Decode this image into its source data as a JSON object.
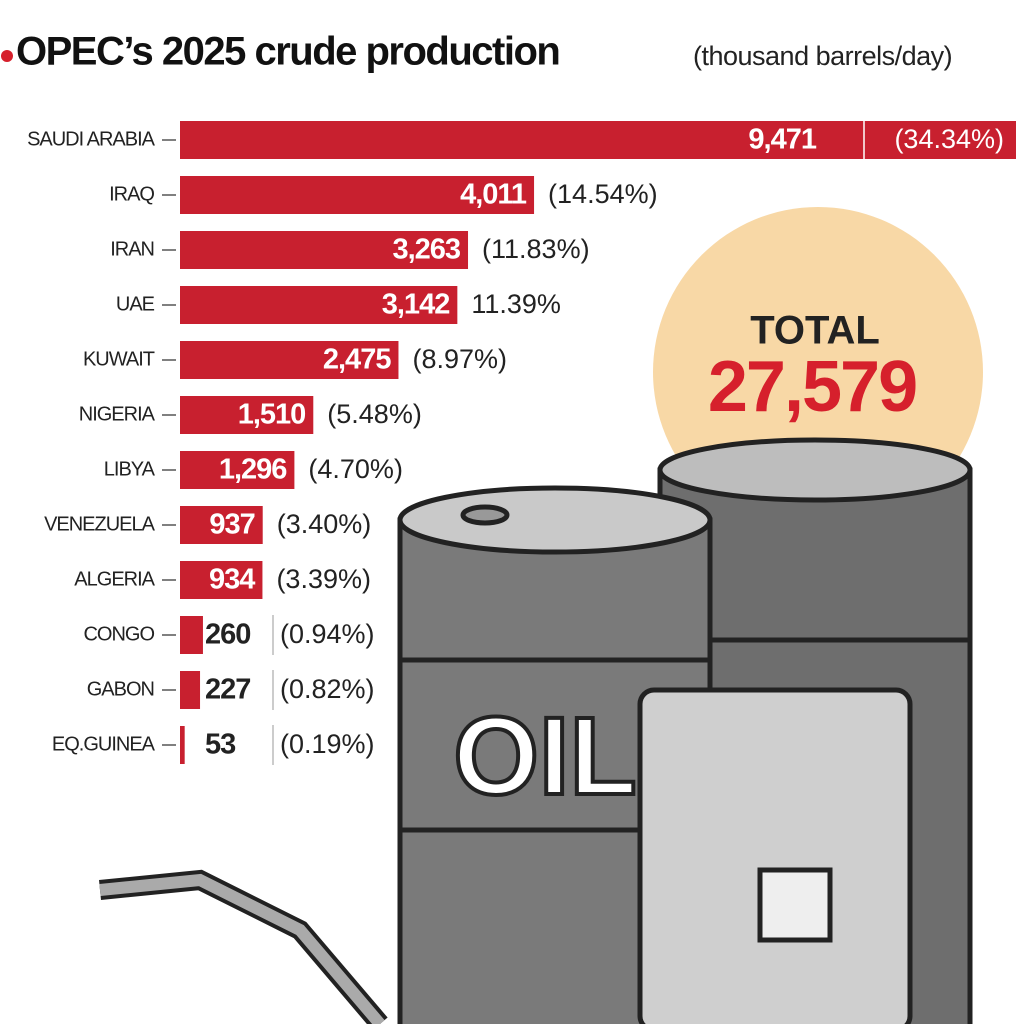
{
  "chart_data": {
    "type": "hbar",
    "title": "OPEC’s 2025 crude production",
    "subtitle": "(thousand barrels/day)",
    "categories": [
      "SAUDI ARABIA",
      "IRAQ",
      "IRAN",
      "UAE",
      "KUWAIT",
      "NIGERIA",
      "LIBYA",
      "VENEZUELA",
      "ALGERIA",
      "CONGO",
      "GABON",
      "EQ.GUINEA"
    ],
    "values": [
      9471,
      4011,
      3263,
      3142,
      2475,
      1510,
      1296,
      937,
      934,
      260,
      227,
      53
    ],
    "value_labels": [
      "9,471",
      "4,011",
      "3,263",
      "3,142",
      "2,475",
      "1,510",
      "1,296",
      "937",
      "934",
      "260",
      "227",
      "53"
    ],
    "share_labels": [
      "(34.34%)",
      "(14.54%)",
      "(11.83%)",
      "11.39%",
      "(8.97%)",
      "(5.48%)",
      "(4.70%)",
      "(3.40%)",
      "(3.39%)",
      "(0.94%)",
      "(0.82%)",
      "(0.19%)"
    ],
    "color": "#c8202f",
    "total_heading": "TOTAL",
    "total_label": "27,579",
    "illustration_text": "OIL"
  }
}
